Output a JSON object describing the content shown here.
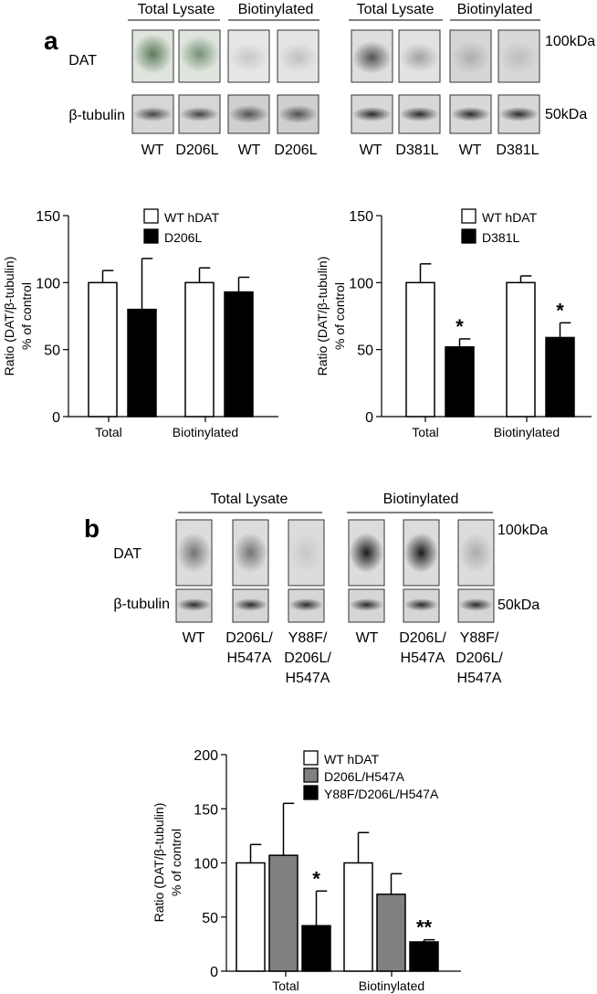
{
  "panel_a": {
    "letter": "a",
    "blot_left": {
      "header_total": "Total Lysate",
      "header_biotin": "Biotinylated",
      "row_dat": "DAT",
      "row_tubulin": "β-tubulin",
      "lanes": [
        "WT",
        "D206L",
        "WT",
        "D206L"
      ]
    },
    "blot_right": {
      "header_total": "Total Lysate",
      "header_biotin": "Biotinylated",
      "marker_high": "100kDa",
      "marker_low": "50kDa",
      "lanes": [
        "WT",
        "D381L",
        "WT",
        "D381L"
      ]
    }
  },
  "panel_b": {
    "letter": "b",
    "blot": {
      "header_total": "Total Lysate",
      "header_biotin": "Biotinylated",
      "row_dat": "DAT",
      "row_tubulin": "β-tubulin",
      "marker_high": "100kDa",
      "marker_low": "50kDa",
      "lanes": [
        [
          "WT"
        ],
        [
          "D206L/",
          "H547A"
        ],
        [
          "Y88F/",
          "D206L/",
          "H547A"
        ],
        [
          "WT"
        ],
        [
          "D206L/",
          "H547A"
        ],
        [
          "Y88F/",
          "D206L/",
          "H547A"
        ]
      ]
    }
  },
  "chart_data": [
    {
      "type": "bar",
      "ylabel": [
        "Ratio (DAT/β-tubulin)",
        "% of control"
      ],
      "ylim": [
        0,
        150
      ],
      "yticks": [
        0,
        50,
        100,
        150
      ],
      "categories": [
        "Total",
        "Biotinylated"
      ],
      "legend_position": "top-right",
      "series": [
        {
          "name": "WT hDAT",
          "color": "#ffffff",
          "values": [
            100,
            100
          ],
          "errors": [
            9,
            11
          ],
          "sig": [
            "",
            ""
          ]
        },
        {
          "name": "D206L",
          "color": "#000000",
          "values": [
            80,
            93
          ],
          "errors": [
            38,
            11
          ],
          "sig": [
            "",
            ""
          ]
        }
      ]
    },
    {
      "type": "bar",
      "ylabel": [
        "Ratio (DAT/β-tubulin)",
        "% of control"
      ],
      "ylim": [
        0,
        150
      ],
      "yticks": [
        0,
        50,
        100,
        150
      ],
      "categories": [
        "Total",
        "Biotinylated"
      ],
      "legend_position": "top-right",
      "series": [
        {
          "name": "WT hDAT",
          "color": "#ffffff",
          "values": [
            100,
            100
          ],
          "errors": [
            14,
            5
          ],
          "sig": [
            "",
            ""
          ]
        },
        {
          "name": "D381L",
          "color": "#000000",
          "values": [
            52,
            59
          ],
          "errors": [
            6,
            11
          ],
          "sig": [
            "*",
            "*"
          ]
        }
      ]
    },
    {
      "type": "bar",
      "ylabel": [
        "Ratio (DAT/β-tubulin)",
        "% of control"
      ],
      "ylim": [
        0,
        200
      ],
      "yticks": [
        0,
        50,
        100,
        150,
        200
      ],
      "categories": [
        "Total",
        "Biotinylated"
      ],
      "legend_position": "top-right",
      "series": [
        {
          "name": "WT hDAT",
          "color": "#ffffff",
          "values": [
            100,
            100
          ],
          "errors": [
            17,
            28
          ],
          "sig": [
            "",
            ""
          ]
        },
        {
          "name": "D206L/H547A",
          "color": "#808080",
          "values": [
            107,
            71
          ],
          "errors": [
            48,
            19
          ],
          "sig": [
            "",
            ""
          ]
        },
        {
          "name": "Y88F/D206L/H547A",
          "color": "#000000",
          "values": [
            42,
            27
          ],
          "errors": [
            32,
            2
          ],
          "sig": [
            "*",
            "**"
          ]
        }
      ]
    }
  ]
}
